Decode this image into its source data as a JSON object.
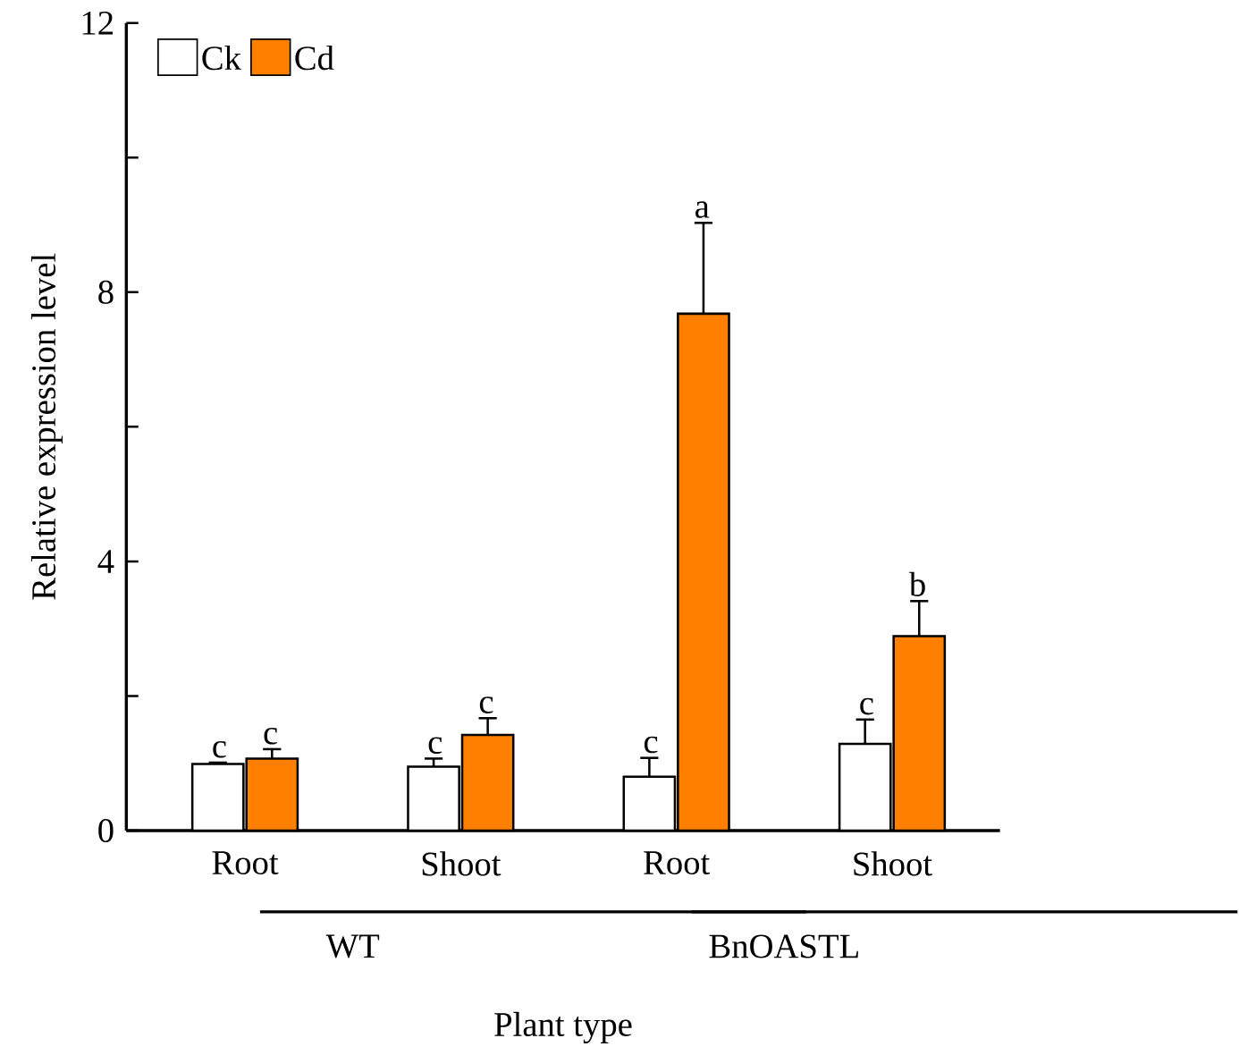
{
  "chart_data": {
    "type": "bar",
    "xlabel": "Plant type",
    "ylabel": "Relative expression level",
    "categories": [
      "Root",
      "Shoot",
      "Root",
      "Shoot"
    ],
    "annotations": [
      "WT",
      "BnOASTL"
    ],
    "ylim": [
      0,
      12
    ],
    "yticks": [
      0,
      {
        "value": 2,
        "label": null
      },
      4,
      {
        "value": 6,
        "label": null
      },
      8,
      {
        "value": 10,
        "label": null
      },
      12
    ],
    "legend": "top left",
    "series": [
      {
        "name": "Ck",
        "color": "#ffffff",
        "values": [
          0.99,
          0.95,
          0.8,
          1.29
        ],
        "errors": [
          0.02,
          0.12,
          0.28,
          0.36
        ],
        "value_labels": [
          "c",
          "c",
          "c",
          "c"
        ]
      },
      {
        "name": "Cd",
        "color": "#ff8000",
        "values": [
          1.07,
          1.42,
          7.68,
          2.89
        ],
        "errors": [
          0.14,
          0.25,
          1.35,
          0.52
        ],
        "value_labels": [
          "c",
          "c",
          "a",
          "b"
        ]
      }
    ]
  }
}
